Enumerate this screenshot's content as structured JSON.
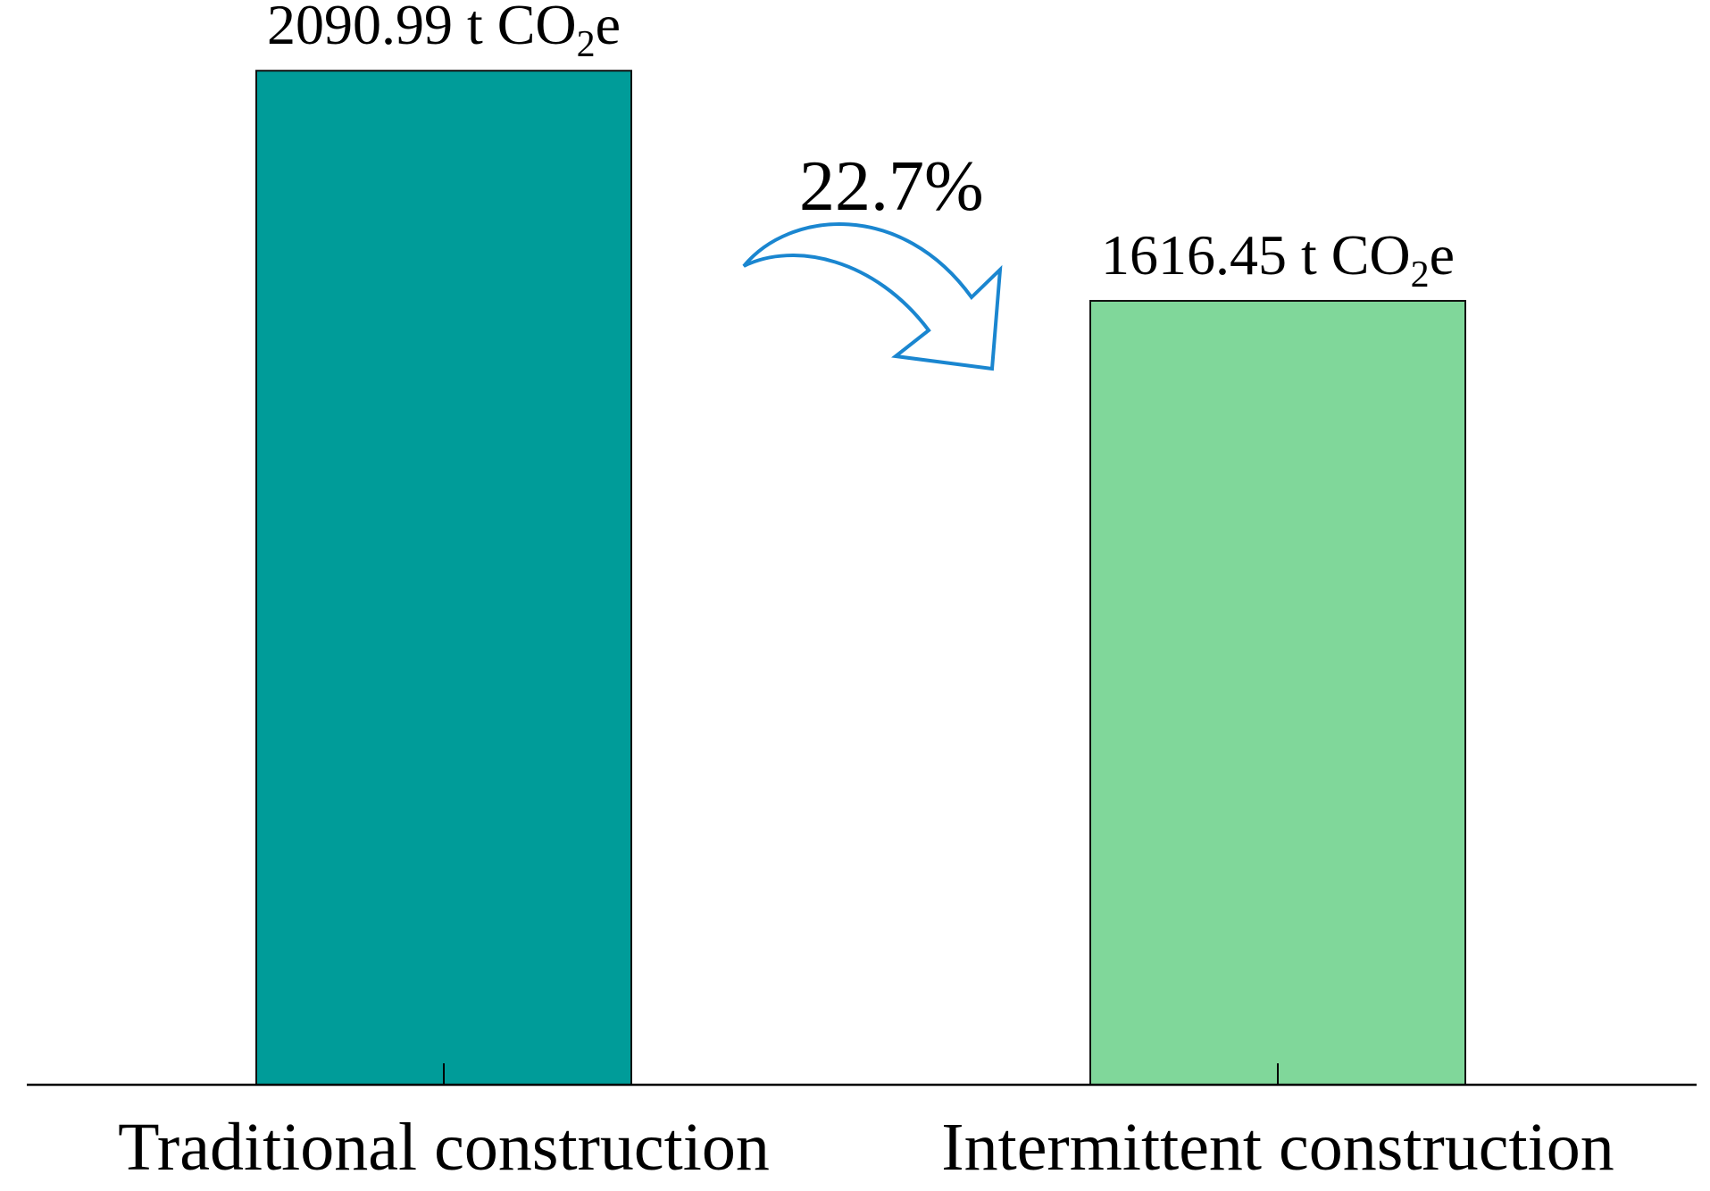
{
  "chart_data": {
    "type": "bar",
    "title": "",
    "xlabel": "",
    "ylabel": "",
    "ylim": [
      0,
      2200
    ],
    "grid": false,
    "legend": "none",
    "categories": [
      "Traditional construction",
      "Intermittent construction"
    ],
    "values": [
      2090.99,
      1616.45
    ],
    "units": "t CO2e",
    "colors": [
      "#009c99",
      "#80d79a"
    ],
    "data_labels": [
      {
        "number": "2090.99 t CO",
        "subscript": "2",
        "suffix": "e"
      },
      {
        "number": "1616.45 t CO",
        "subscript": "2",
        "suffix": "e"
      }
    ],
    "annotation": {
      "text": "22.7%",
      "arrow_color": "#1a86d0",
      "from_category": "Traditional construction",
      "to_category": "Intermittent construction"
    }
  }
}
